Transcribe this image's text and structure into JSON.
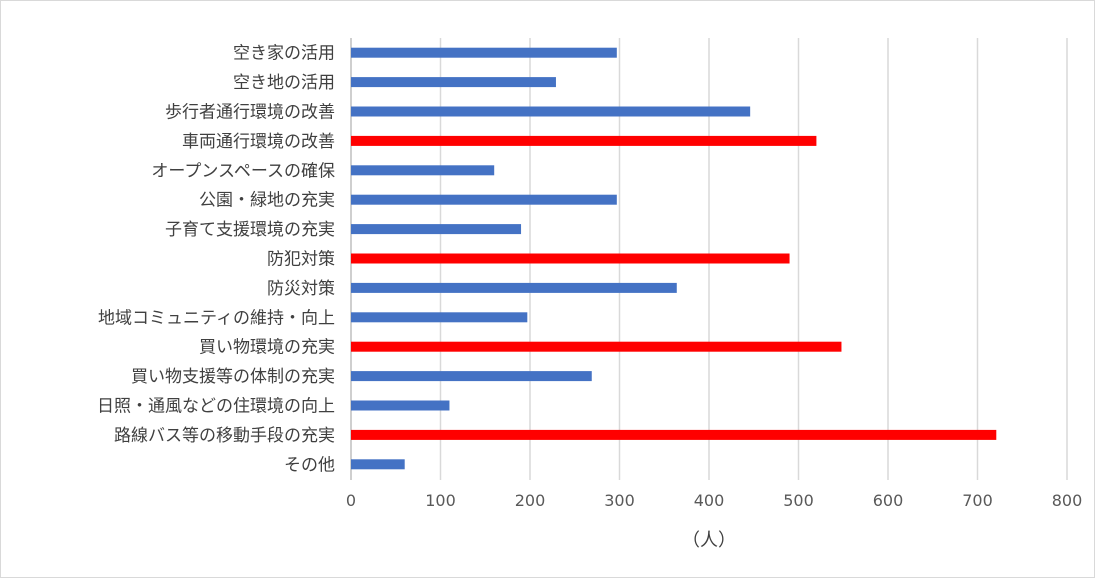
{
  "chart_data": {
    "type": "bar",
    "orientation": "horizontal",
    "categories": [
      "空き家の活用",
      "空き地の活用",
      "歩行者通行環境の改善",
      "車両通行環境の改善",
      "オープンスペースの確保",
      "公園・緑地の充実",
      "子育て支援環境の充実",
      "防犯対策",
      "防災対策",
      "地域コミュニティの維持・向上",
      "買い物環境の充実",
      "買い物支援等の体制の充実",
      "日照・通風などの住環境の向上",
      "路線バス等の移動手段の充実",
      "その他"
    ],
    "values": [
      297,
      229,
      446,
      520,
      160,
      297,
      190,
      490,
      364,
      197,
      548,
      269,
      110,
      721,
      60
    ],
    "highlighted": [
      false,
      false,
      false,
      true,
      false,
      false,
      false,
      true,
      false,
      false,
      true,
      false,
      false,
      true,
      false
    ],
    "colors": {
      "default": "#4472c4",
      "highlight": "#ff0000"
    },
    "xlim": [
      0,
      800
    ],
    "xticks": [
      0,
      100,
      200,
      300,
      400,
      500,
      600,
      700,
      800
    ],
    "xlabel": "（人）",
    "ylabel": "",
    "title": "",
    "grid": "vertical"
  }
}
